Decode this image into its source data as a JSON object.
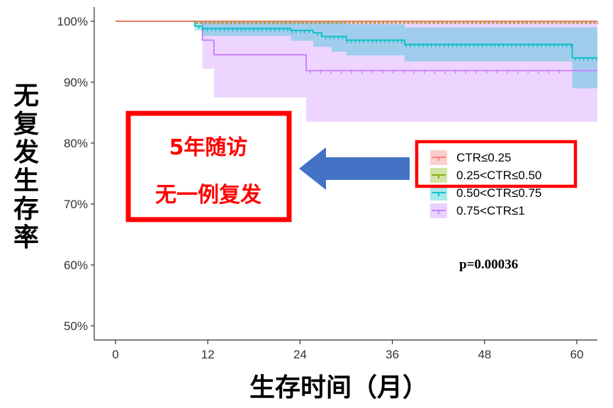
{
  "chart_data": {
    "type": "line",
    "subtype": "kaplan-meier survival curves with confidence bands",
    "ylabel": "无复发生存率",
    "xlabel": "生存时间（月）",
    "x_ticks": [
      0,
      12,
      24,
      36,
      48,
      60
    ],
    "x_tick_labels": [
      "0",
      "12",
      "24",
      "36",
      "48",
      "60"
    ],
    "y_ticks": [
      0.5,
      0.6,
      0.7,
      0.8,
      0.9,
      1.0
    ],
    "y_tick_labels": [
      "50%",
      "60%",
      "70%",
      "80%",
      "90%",
      "100%"
    ],
    "xlim": [
      -3,
      62.5
    ],
    "ylim": [
      0.48,
      1.02
    ],
    "grid": false,
    "legend_position": "right-middle",
    "p_value_text": "p=0.00036",
    "series": [
      {
        "name": "CTR≤0.25",
        "color": "#f8766d",
        "band_color": "#f8766d",
        "steps": [
          [
            0,
            1.0
          ],
          [
            63,
            1.0
          ]
        ],
        "band_steps": [
          [
            0,
            1.0,
            1.0
          ],
          [
            63,
            1.0,
            1.0
          ]
        ],
        "censor_marks": "dense"
      },
      {
        "name": "0.25<CTR≤0.50",
        "color": "#7cae00",
        "band_color": "#7cae00",
        "steps": [
          [
            0,
            1.0
          ],
          [
            63,
            1.0
          ]
        ],
        "band_steps": [
          [
            0,
            1.0,
            1.0
          ],
          [
            63,
            1.0,
            1.0
          ]
        ],
        "censor_marks": "dense"
      },
      {
        "name": "0.50<CTR≤0.75",
        "color": "#00bfc4",
        "band_color": "#00bfc4",
        "steps": [
          [
            0,
            1.0
          ],
          [
            10.3,
            0.992
          ],
          [
            11.3,
            0.988
          ],
          [
            22.8,
            0.985
          ],
          [
            25.7,
            0.981
          ],
          [
            26.8,
            0.975
          ],
          [
            30.0,
            0.969
          ],
          [
            37.6,
            0.962
          ],
          [
            59.4,
            0.94
          ],
          [
            63,
            0.94
          ]
        ],
        "band_steps": [
          [
            0,
            1.0,
            1.0
          ],
          [
            10.3,
            0.985,
            1.0
          ],
          [
            11.3,
            0.976,
            1.0
          ],
          [
            22.8,
            0.968,
            1.0
          ],
          [
            25.7,
            0.958,
            1.0
          ],
          [
            28.1,
            0.95,
            1.0
          ],
          [
            30.0,
            0.944,
            0.995
          ],
          [
            37.6,
            0.934,
            0.99
          ],
          [
            59.4,
            0.89,
            0.99
          ],
          [
            63,
            0.89,
            0.99
          ]
        ],
        "censor_marks": "dense"
      },
      {
        "name": "0.75<CTR≤1",
        "color": "#c77cff",
        "band_color": "#c77cff",
        "steps": [
          [
            0,
            1.0
          ],
          [
            11.3,
            0.969
          ],
          [
            12.8,
            0.945
          ],
          [
            24.8,
            0.919
          ],
          [
            63,
            0.919
          ]
        ],
        "band_steps": [
          [
            0,
            1.0,
            1.0
          ],
          [
            11.3,
            0.922,
            1.0
          ],
          [
            12.8,
            0.875,
            1.0
          ],
          [
            24.8,
            0.835,
            1.0
          ],
          [
            63,
            0.835,
            1.0
          ]
        ],
        "censor_marks": "sparse"
      }
    ]
  },
  "annotation": {
    "line1": "5年随访",
    "line2": "无一例复发",
    "box_color": "#ff0000",
    "arrow_color": "#4472c4",
    "legend_highlight_color": "#ff0000"
  }
}
